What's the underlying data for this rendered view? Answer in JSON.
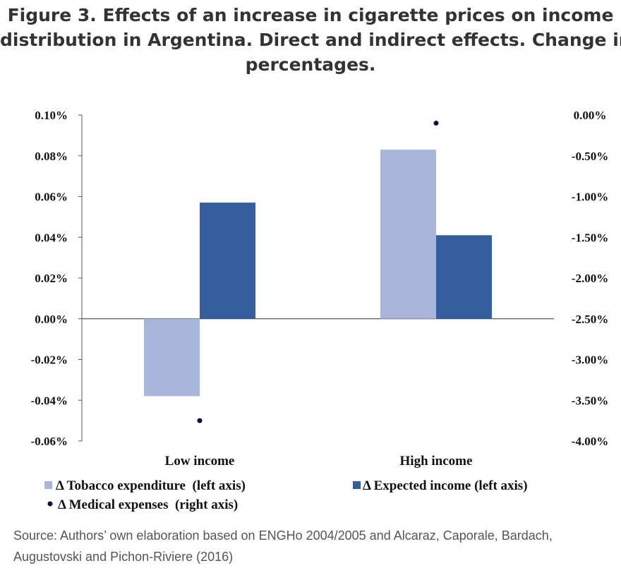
{
  "title_lines": [
    "Figure 3. Effects of an increase in cigarette prices on income",
    "distribution in Argentina. Direct and indirect effects. Change in",
    "percentages."
  ],
  "source_note": "Source: Authors’ own elaboration based on ENGHo 2004/2005 and Alcaraz, Caporale, Bardach, Augustovski and Pichon-Riviere (2016)",
  "chart_data": {
    "type": "bar",
    "categories": [
      "Low income",
      "High income"
    ],
    "series": [
      {
        "name": "Δ Tobacco expenditure  (left axis)",
        "axis": "left",
        "kind": "bar",
        "color": "#a9b5da",
        "values": [
          -0.038,
          0.083
        ]
      },
      {
        "name": "Δ Expected income (left axis)",
        "axis": "left",
        "kind": "bar",
        "color": "#355e9f",
        "values": [
          0.057,
          0.041
        ]
      },
      {
        "name": "Δ Medical expenses  (right axis)",
        "axis": "right",
        "kind": "point",
        "color": "#0b1530",
        "values": [
          -3.75,
          -0.1
        ]
      }
    ],
    "left_axis": {
      "min": -0.06,
      "max": 0.1,
      "step": 0.02,
      "ticks": [
        "0.10%",
        "0.08%",
        "0.06%",
        "0.04%",
        "0.02%",
        "0.00%",
        "-0.02%",
        "-0.04%",
        "-0.06%"
      ]
    },
    "right_axis": {
      "min": -4.0,
      "max": 0.0,
      "step": 0.5,
      "ticks": [
        "0.00%",
        "-0.50%",
        "-1.00%",
        "-1.50%",
        "-2.00%",
        "-2.50%",
        "-3.00%",
        "-3.50%",
        "-4.00%"
      ]
    },
    "unit": "%",
    "grid": false,
    "legend_position": "bottom"
  }
}
